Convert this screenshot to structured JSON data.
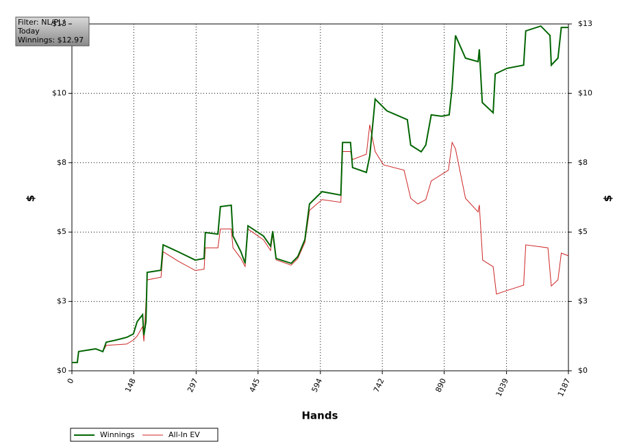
{
  "chart_data": {
    "type": "line",
    "annotation": [
      "Filter: NL/PL/",
      "Today",
      "Winnings: $12.97"
    ],
    "x_label": "Hands",
    "y_label": "$",
    "y2_label": "$",
    "xlim": [
      0,
      1187
    ],
    "xticks": [
      0,
      148,
      297,
      445,
      594,
      742,
      890,
      1039,
      1187
    ],
    "ylim": [
      0,
      12.97
    ],
    "yticks": [
      {
        "value": 0,
        "label": "$0"
      },
      {
        "value": 2.594,
        "label": "$3"
      },
      {
        "value": 5.188,
        "label": "$5"
      },
      {
        "value": 7.782,
        "label": "$8"
      },
      {
        "value": 10.376,
        "label": "$10"
      },
      {
        "value": 12.97,
        "label": "$13"
      }
    ],
    "y2lim": [
      0,
      12.97
    ],
    "y2ticks": [
      {
        "value": 0,
        "label": "$0"
      },
      {
        "value": 2.594,
        "label": "$3"
      },
      {
        "value": 5.188,
        "label": "$5"
      },
      {
        "value": 7.782,
        "label": "$8"
      },
      {
        "value": 10.376,
        "label": "$10"
      },
      {
        "value": 12.97,
        "label": "$13"
      }
    ],
    "grid": true,
    "series": [
      {
        "name": "Winnings",
        "color": "#006400",
        "x": [
          0,
          13,
          16,
          57,
          74,
          82,
          106,
          131,
          147,
          156,
          169,
          172,
          177,
          180,
          213,
          218,
          254,
          295,
          316,
          319,
          349,
          355,
          381,
          385,
          404,
          414,
          421,
          458,
          475,
          480,
          488,
          524,
          540,
          557,
          568,
          598,
          643,
          647,
          666,
          671,
          704,
          712,
          725,
          753,
          802,
          810,
          835,
          846,
          859,
          884,
          902,
          909,
          917,
          941,
          971,
          974,
          981,
          1007,
          1012,
          1040,
          1080,
          1085,
          1121,
          1143,
          1146,
          1162,
          1170,
          1187
        ],
        "values": [
          0.31,
          0.31,
          0.72,
          0.82,
          0.72,
          1.07,
          1.15,
          1.25,
          1.38,
          1.84,
          2.1,
          1.33,
          1.84,
          3.68,
          3.76,
          4.71,
          4.45,
          4.14,
          4.2,
          5.17,
          5.11,
          6.14,
          6.19,
          5.04,
          4.45,
          4.02,
          5.42,
          5.04,
          4.66,
          5.22,
          4.2,
          4.02,
          4.27,
          4.91,
          6.24,
          6.7,
          6.57,
          8.54,
          8.54,
          7.6,
          7.42,
          8.03,
          10.16,
          9.72,
          9.39,
          8.44,
          8.19,
          8.44,
          9.57,
          9.52,
          9.57,
          10.59,
          12.54,
          11.69,
          11.56,
          12.02,
          10.03,
          9.65,
          11.1,
          11.31,
          11.43,
          12.71,
          12.89,
          12.54,
          11.43,
          11.69,
          12.84,
          12.84
        ]
      },
      {
        "name": "All-In EV",
        "color": "#cc2222",
        "x": [
          0,
          13,
          16,
          57,
          74,
          82,
          131,
          147,
          156,
          169,
          172,
          180,
          213,
          218,
          254,
          295,
          316,
          319,
          349,
          355,
          381,
          385,
          404,
          414,
          421,
          458,
          475,
          480,
          488,
          524,
          540,
          557,
          568,
          598,
          643,
          647,
          666,
          671,
          704,
          712,
          725,
          745,
          794,
          810,
          827,
          846,
          859,
          900,
          909,
          917,
          941,
          971,
          974,
          982,
          1007,
          1015,
          1040,
          1080,
          1085,
          1138,
          1146,
          1162,
          1170,
          1187
        ],
        "values": [
          0.31,
          0.31,
          0.72,
          0.82,
          0.72,
          0.95,
          1.0,
          1.15,
          1.3,
          1.65,
          1.1,
          3.4,
          3.5,
          4.45,
          4.1,
          3.75,
          3.8,
          4.6,
          4.6,
          5.3,
          5.3,
          4.6,
          4.2,
          3.9,
          5.3,
          4.9,
          4.5,
          5.1,
          4.15,
          3.95,
          4.2,
          4.8,
          6.0,
          6.4,
          6.3,
          8.2,
          8.2,
          7.9,
          8.1,
          9.2,
          8.2,
          7.7,
          7.5,
          6.45,
          6.24,
          6.4,
          7.1,
          7.5,
          8.54,
          8.3,
          6.45,
          5.94,
          6.2,
          4.14,
          3.89,
          2.87,
          3.0,
          3.2,
          4.71,
          4.6,
          3.17,
          3.4,
          4.4,
          4.3
        ]
      }
    ]
  }
}
